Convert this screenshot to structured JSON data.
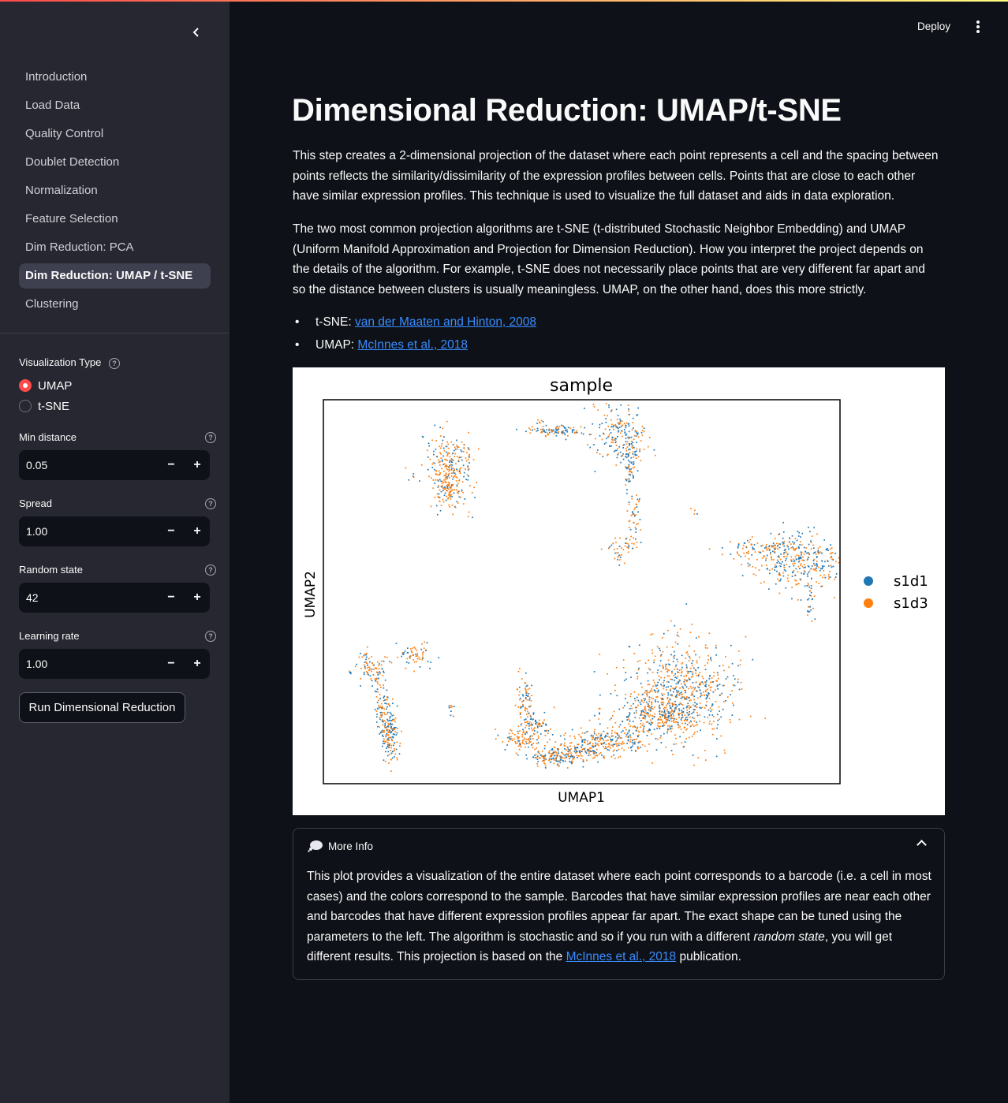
{
  "header": {
    "deploy_label": "Deploy"
  },
  "sidebar": {
    "nav": [
      {
        "label": "Introduction",
        "active": false
      },
      {
        "label": "Load Data",
        "active": false
      },
      {
        "label": "Quality Control",
        "active": false
      },
      {
        "label": "Doublet Detection",
        "active": false
      },
      {
        "label": "Normalization",
        "active": false
      },
      {
        "label": "Feature Selection",
        "active": false
      },
      {
        "label": "Dim Reduction: PCA",
        "active": false
      },
      {
        "label": "Dim Reduction: UMAP / t-SNE",
        "active": true
      },
      {
        "label": "Clustering",
        "active": false
      }
    ],
    "viz_type": {
      "label": "Visualization Type",
      "options": [
        "UMAP",
        "t-SNE"
      ],
      "selected": "UMAP"
    },
    "params": [
      {
        "label": "Min distance",
        "value": "0.05"
      },
      {
        "label": "Spread",
        "value": "1.00"
      },
      {
        "label": "Random state",
        "value": "42"
      },
      {
        "label": "Learning rate",
        "value": "1.00"
      }
    ],
    "run_label": "Run Dimensional Reduction"
  },
  "main": {
    "title": "Dimensional Reduction: UMAP/t-SNE",
    "p1": "This step creates a 2-dimensional projection of the dataset where each point represents a cell and the spacing between points reflects the similarity/dissimilarity of the expression profiles between cells. Points that are close to each other have similar expression profiles. This technique is used to visualize the full dataset and aids in data exploration.",
    "p2": "The two most common projection algorithms are t-SNE (t-distributed Stochastic Neighbor Embedding) and UMAP (Uniform Manifold Approximation and Projection for Dimension Reduction). How you interpret the project depends on the details of the algorithm. For example, t-SNE does not necessarily place points that are very different far apart and so the distance between clusters is usually meaningless. UMAP, on the other hand, does this more strictly.",
    "refs": [
      {
        "prefix": "t-SNE: ",
        "link": "van der Maaten and Hinton, 2008"
      },
      {
        "prefix": "UMAP: ",
        "link": "McInnes et al., 2018"
      }
    ]
  },
  "chart_data": {
    "type": "scatter",
    "title": "sample",
    "xlabel": "UMAP1",
    "ylabel": "UMAP2",
    "legend_position": "right, outside",
    "grid": false,
    "series": [
      {
        "name": "s1d1",
        "color": "#1f77b4"
      },
      {
        "name": "s1d3",
        "color": "#ff7f0e"
      }
    ]
  },
  "info": {
    "title": "More Info",
    "body_1": "This plot provides a visualization of the entire dataset where each point corresponds to a barcode (i.e. a cell in most cases) and the colors correspond to the sample. Barcodes that have similar expression profiles are near each other and barcodes that have different expression profiles appear far apart. The exact shape can be tuned using the parameters to the left. The algorithm is stochastic and so if you run with a different ",
    "body_em": "random state",
    "body_2": ", you will get different results. This projection is based on the ",
    "body_link": "McInnes et al., 2018",
    "body_3": " publication."
  }
}
